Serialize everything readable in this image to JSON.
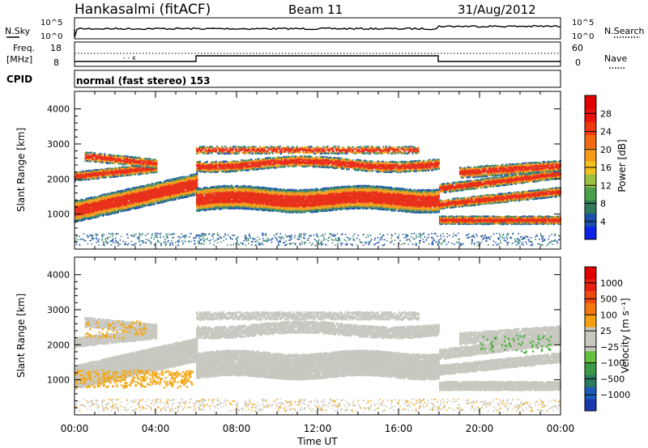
{
  "header": {
    "station": "Hankasalmi (fitACF)",
    "beam": "Beam 11",
    "date": "31/Aug/2012"
  },
  "noise_panel": {
    "left_label": "N.Sky",
    "right_label": "N.Search",
    "left_ticks": [
      "10^5",
      "10^0"
    ],
    "right_ticks": [
      "10^5",
      "10^0"
    ]
  },
  "freq_panel": {
    "left_label_1": "Freq.",
    "left_label_2": "[MHz]",
    "right_label": "Nave",
    "left_ticks": [
      "18",
      "8"
    ],
    "right_ticks": [
      "60",
      "0"
    ]
  },
  "cpid": {
    "label": "CPID",
    "value": "normal (fast stereo) 153"
  },
  "chart_data": [
    {
      "type": "heatmap",
      "title": "",
      "ylabel": "Slant Range [km]",
      "yticks": [
        "1000",
        "2000",
        "3000",
        "4000"
      ],
      "xticks": [
        "00:00",
        "04:00",
        "08:00",
        "12:00",
        "16:00",
        "20:00",
        "00:00"
      ],
      "ylim": [
        0,
        4500
      ],
      "colorbar": {
        "label": "Power [dB]",
        "ticks": [
          "4",
          "8",
          "12",
          "16",
          "20",
          "24",
          "28"
        ],
        "colors": [
          "#0b22e6",
          "#1e4fa8",
          "#2f7a5a",
          "#4aa04a",
          "#9cc040",
          "#f0c020",
          "#f79a16",
          "#f26a10",
          "#ee3a0e",
          "#e8130d",
          "#e00000"
        ]
      }
    },
    {
      "type": "heatmap",
      "title": "",
      "ylabel": "Slant Range [km]",
      "yticks": [
        "1000",
        "2000",
        "3000",
        "4000"
      ],
      "xticks": [
        "00:00",
        "04:00",
        "08:00",
        "12:00",
        "16:00",
        "20:00",
        "00:00"
      ],
      "ylim": [
        0,
        4500
      ],
      "xlabel": "Time UT",
      "colorbar": {
        "label": "Velocity [m s⁻¹]",
        "ticks": [
          "1000",
          "500",
          "100",
          "25",
          "−25",
          "−100",
          "−500",
          "−1000"
        ],
        "colors": [
          "#1838b0",
          "#1c5cb8",
          "#2c7a60",
          "#3a9a48",
          "#66c040",
          "#c8c8c0",
          "#c8c8c0",
          "#f4a010",
          "#f27810",
          "#ee4a10",
          "#e82010",
          "#e00000"
        ]
      }
    }
  ],
  "colors": {
    "power_main": "#e8301a",
    "power_edge": "#f0a020",
    "power_outer": "#3a8a70",
    "power_far": "#2050b0",
    "velocity_gray": "#c8c8c0",
    "velocity_orange": "#f4a818",
    "velocity_green": "#50b040"
  }
}
